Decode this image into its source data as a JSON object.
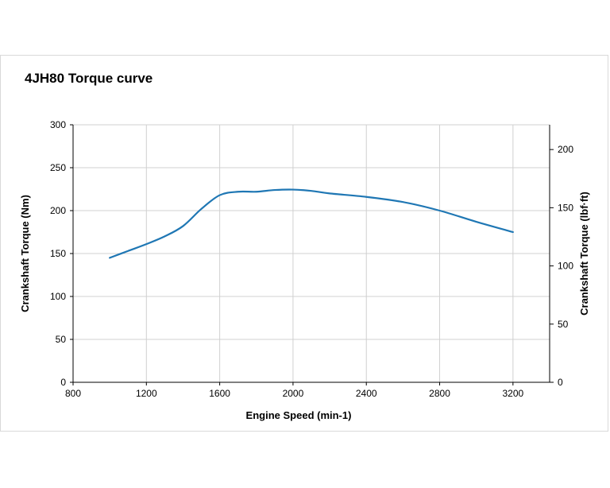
{
  "chart_data": {
    "type": "line",
    "title": "4JH80 Torque curve",
    "xlabel": "Engine Speed (min-1)",
    "ylabel": "Crankshaft Torque (Nm)",
    "y2label": "Crankshaft Torque (lbf·ft)",
    "xlim": [
      800,
      3400
    ],
    "ylim": [
      0,
      300
    ],
    "y2lim": [
      0,
      221.27
    ],
    "xticks": [
      800,
      1200,
      1600,
      2000,
      2400,
      2800,
      3200
    ],
    "yticks": [
      0,
      50,
      100,
      150,
      200,
      250,
      300
    ],
    "y2ticks": [
      0,
      50,
      100,
      150,
      200
    ],
    "grid": true,
    "line_color": "#1f77b4",
    "series": [
      {
        "x": [
          1000,
          1100,
          1200,
          1300,
          1400,
          1500,
          1600,
          1700,
          1800,
          1900,
          2000,
          2100,
          2200,
          2400,
          2600,
          2800,
          3000,
          3200
        ],
        "values": [
          145,
          153,
          161,
          170,
          182,
          202,
          218,
          222,
          222,
          224,
          224.5,
          223,
          220,
          216,
          210,
          200,
          187,
          175
        ]
      }
    ]
  }
}
